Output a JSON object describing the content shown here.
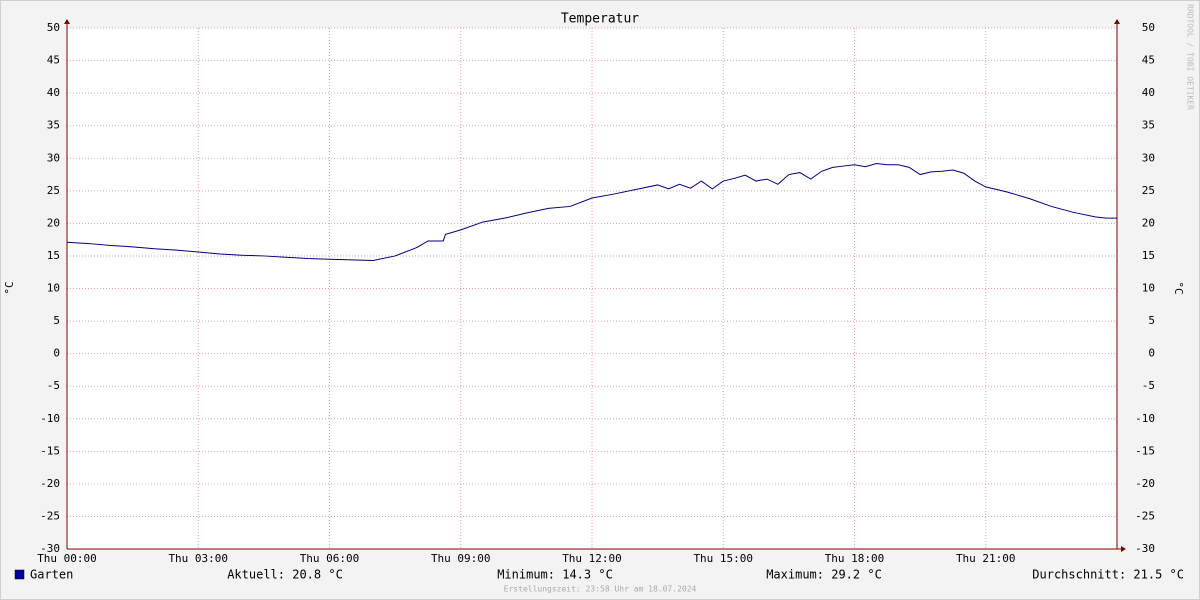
{
  "chart_data": {
    "type": "line",
    "title": "Temperatur",
    "y_label": "°C",
    "y2_label": "°C",
    "watermark": "RRDTOOL / TOBI OETIKER",
    "x": [
      0,
      0.5,
      1,
      1.5,
      2,
      2.5,
      3,
      3.5,
      4,
      4.5,
      5,
      5.5,
      6,
      6.5,
      7,
      7.5,
      8,
      8.25,
      8.6,
      8.65,
      9,
      9.5,
      10,
      10.5,
      11,
      11.5,
      12,
      12.5,
      13,
      13.5,
      13.75,
      14,
      14.25,
      14.5,
      14.75,
      15,
      15.25,
      15.5,
      15.75,
      16,
      16.25,
      16.5,
      16.75,
      17,
      17.25,
      17.5,
      17.75,
      18,
      18.25,
      18.5,
      18.75,
      19,
      19.25,
      19.5,
      19.75,
      20,
      20.25,
      20.5,
      20.75,
      21,
      21.5,
      22,
      22.5,
      23,
      23.5,
      23.75,
      24
    ],
    "series": [
      {
        "name": "Garten",
        "color": "#000080",
        "legend_color": "#0000a0",
        "values": [
          17.1,
          16.9,
          16.6,
          16.4,
          16.1,
          15.9,
          15.6,
          15.3,
          15.1,
          15.0,
          14.8,
          14.6,
          14.5,
          14.4,
          14.3,
          15.0,
          16.3,
          17.3,
          17.3,
          18.3,
          19.0,
          20.2,
          20.8,
          21.6,
          22.3,
          22.6,
          23.9,
          24.5,
          25.2,
          25.9,
          25.3,
          26.0,
          25.4,
          26.5,
          25.3,
          26.5,
          26.9,
          27.4,
          26.5,
          26.8,
          26.0,
          27.5,
          27.8,
          26.8,
          28.0,
          28.6,
          28.8,
          29.0,
          28.7,
          29.2,
          29.0,
          29.0,
          28.6,
          27.5,
          27.9,
          28.0,
          28.2,
          27.7,
          26.5,
          25.6,
          24.8,
          23.8,
          22.6,
          21.7,
          21.0,
          20.8,
          20.8
        ]
      }
    ],
    "xlim": [
      0,
      24
    ],
    "xticks": [
      {
        "value": 0,
        "label": "Thu 00:00"
      },
      {
        "value": 3,
        "label": "Thu 03:00"
      },
      {
        "value": 6,
        "label": "Thu 06:00"
      },
      {
        "value": 9,
        "label": "Thu 09:00"
      },
      {
        "value": 12,
        "label": "Thu 12:00"
      },
      {
        "value": 15,
        "label": "Thu 15:00"
      },
      {
        "value": 18,
        "label": "Thu 18:00"
      },
      {
        "value": 21,
        "label": "Thu 21:00"
      }
    ],
    "ylim": [
      -30,
      50
    ],
    "yticks": [
      -30,
      -25,
      -20,
      -15,
      -10,
      -5,
      0,
      5,
      10,
      15,
      20,
      25,
      30,
      35,
      40,
      45,
      50
    ],
    "grid": true,
    "stats": [
      "Aktuell: 20.8 °C",
      "Minimum: 14.3 °C",
      "Maximum: 29.2 °C",
      "Durchschnitt: 21.5 °C"
    ],
    "footer": "Erstellungszeit: 23:58 Uhr am 18.07.2024"
  }
}
